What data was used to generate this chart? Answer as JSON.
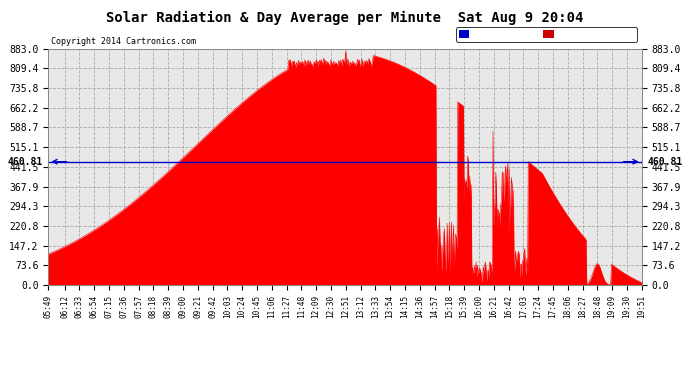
{
  "title": "Solar Radiation & Day Average per Minute  Sat Aug 9 20:04",
  "copyright": "Copyright 2014 Cartronics.com",
  "median_value": 460.81,
  "y_max": 883.0,
  "y_min": 0.0,
  "y_ticks": [
    0.0,
    73.6,
    147.2,
    220.8,
    294.3,
    367.9,
    441.5,
    515.1,
    588.7,
    662.2,
    735.8,
    809.4,
    883.0
  ],
  "background_color": "#ffffff",
  "plot_bg_color": "#e8e8e8",
  "fill_color": "#ff0000",
  "median_line_color": "#0000cc",
  "grid_color": "#aaaaaa",
  "legend_median_bg": "#0000cc",
  "legend_radiation_bg": "#cc0000",
  "x_labels": [
    "05:49",
    "06:12",
    "06:33",
    "06:54",
    "07:15",
    "07:36",
    "07:57",
    "08:18",
    "08:39",
    "09:00",
    "09:21",
    "09:42",
    "10:03",
    "10:24",
    "10:45",
    "11:06",
    "11:27",
    "11:48",
    "12:09",
    "12:30",
    "12:51",
    "13:12",
    "13:33",
    "13:54",
    "14:15",
    "14:36",
    "14:57",
    "15:18",
    "15:39",
    "16:00",
    "16:21",
    "16:42",
    "17:03",
    "17:24",
    "17:45",
    "18:06",
    "18:27",
    "18:48",
    "19:09",
    "19:30",
    "19:51"
  ],
  "start_hhmm": "05:49",
  "end_hhmm": "19:51"
}
